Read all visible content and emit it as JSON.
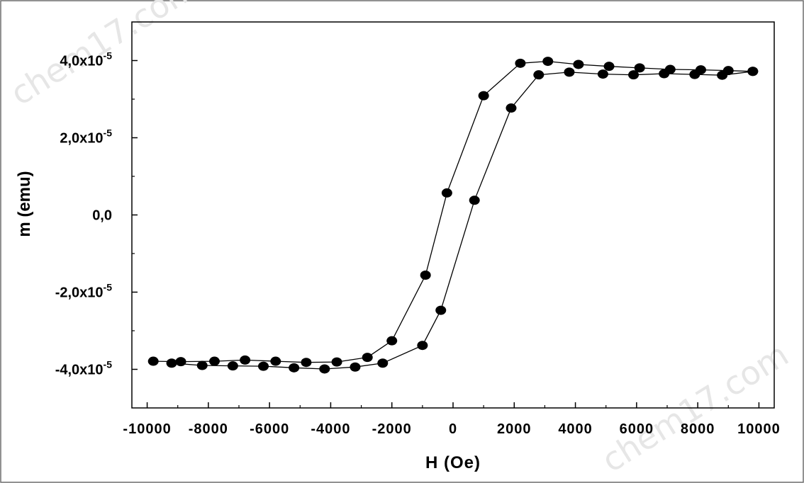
{
  "watermark": {
    "text_top_left": "chem17.com",
    "text_bottom_right": "chem17.com"
  },
  "chart_data": {
    "type": "scatter",
    "xlabel": "H (Oe)",
    "ylabel": "m (emu)",
    "xlim": [
      -10500,
      10500
    ],
    "ylim": [
      -5e-05,
      5e-05
    ],
    "grid": false,
    "legend": "none",
    "marker_color": "#000000",
    "line_color": "#000000",
    "x_ticks": [
      -10000,
      -8000,
      -6000,
      -4000,
      -2000,
      0,
      2000,
      4000,
      6000,
      8000,
      10000
    ],
    "x_tick_labels": [
      "-10000",
      "-8000",
      "-6000",
      "-4000",
      "-2000",
      "0",
      "2000",
      "4000",
      "6000",
      "8000",
      "10000"
    ],
    "y_ticks": [
      {
        "value": -4e-05,
        "mantissa": "-4,0x10",
        "exponent": "-5"
      },
      {
        "value": -2e-05,
        "mantissa": "-2,0x10",
        "exponent": "-5"
      },
      {
        "value": 0,
        "mantissa": "0,0",
        "exponent": ""
      },
      {
        "value": 2e-05,
        "mantissa": "2,0x10",
        "exponent": "-5"
      },
      {
        "value": 4e-05,
        "mantissa": "4,0x10",
        "exponent": "-5"
      }
    ],
    "series": [
      {
        "x": [
          9800,
          8800,
          7900,
          6900,
          5900,
          4900,
          3800,
          2800,
          1900,
          700,
          -400,
          -1000,
          -2300,
          -3200,
          -4200,
          -5200,
          -6200,
          -7200,
          -8200,
          -9200
        ],
        "y": [
          3.72e-05,
          3.62e-05,
          3.64e-05,
          3.66e-05,
          3.63e-05,
          3.65e-05,
          3.7e-05,
          3.63e-05,
          2.77e-05,
          3.8e-06,
          -2.47e-05,
          -3.38e-05,
          -3.84e-05,
          -3.94e-05,
          -3.99e-05,
          -3.96e-05,
          -3.92e-05,
          -3.91e-05,
          -3.9e-05,
          -3.84e-05
        ]
      },
      {
        "x": [
          -9800,
          -8900,
          -7800,
          -6800,
          -5800,
          -4800,
          -3800,
          -2800,
          -2000,
          -900,
          -200,
          1000,
          2200,
          3100,
          4100,
          5100,
          6100,
          7100,
          8100,
          9000,
          9800
        ],
        "y": [
          -3.79e-05,
          -3.8e-05,
          -3.79e-05,
          -3.76e-05,
          -3.79e-05,
          -3.82e-05,
          -3.81e-05,
          -3.69e-05,
          -3.26e-05,
          -1.56e-05,
          5.7e-06,
          3.09e-05,
          3.93e-05,
          3.98e-05,
          3.9e-05,
          3.85e-05,
          3.81e-05,
          3.77e-05,
          3.76e-05,
          3.74e-05,
          3.72e-05
        ]
      }
    ]
  }
}
